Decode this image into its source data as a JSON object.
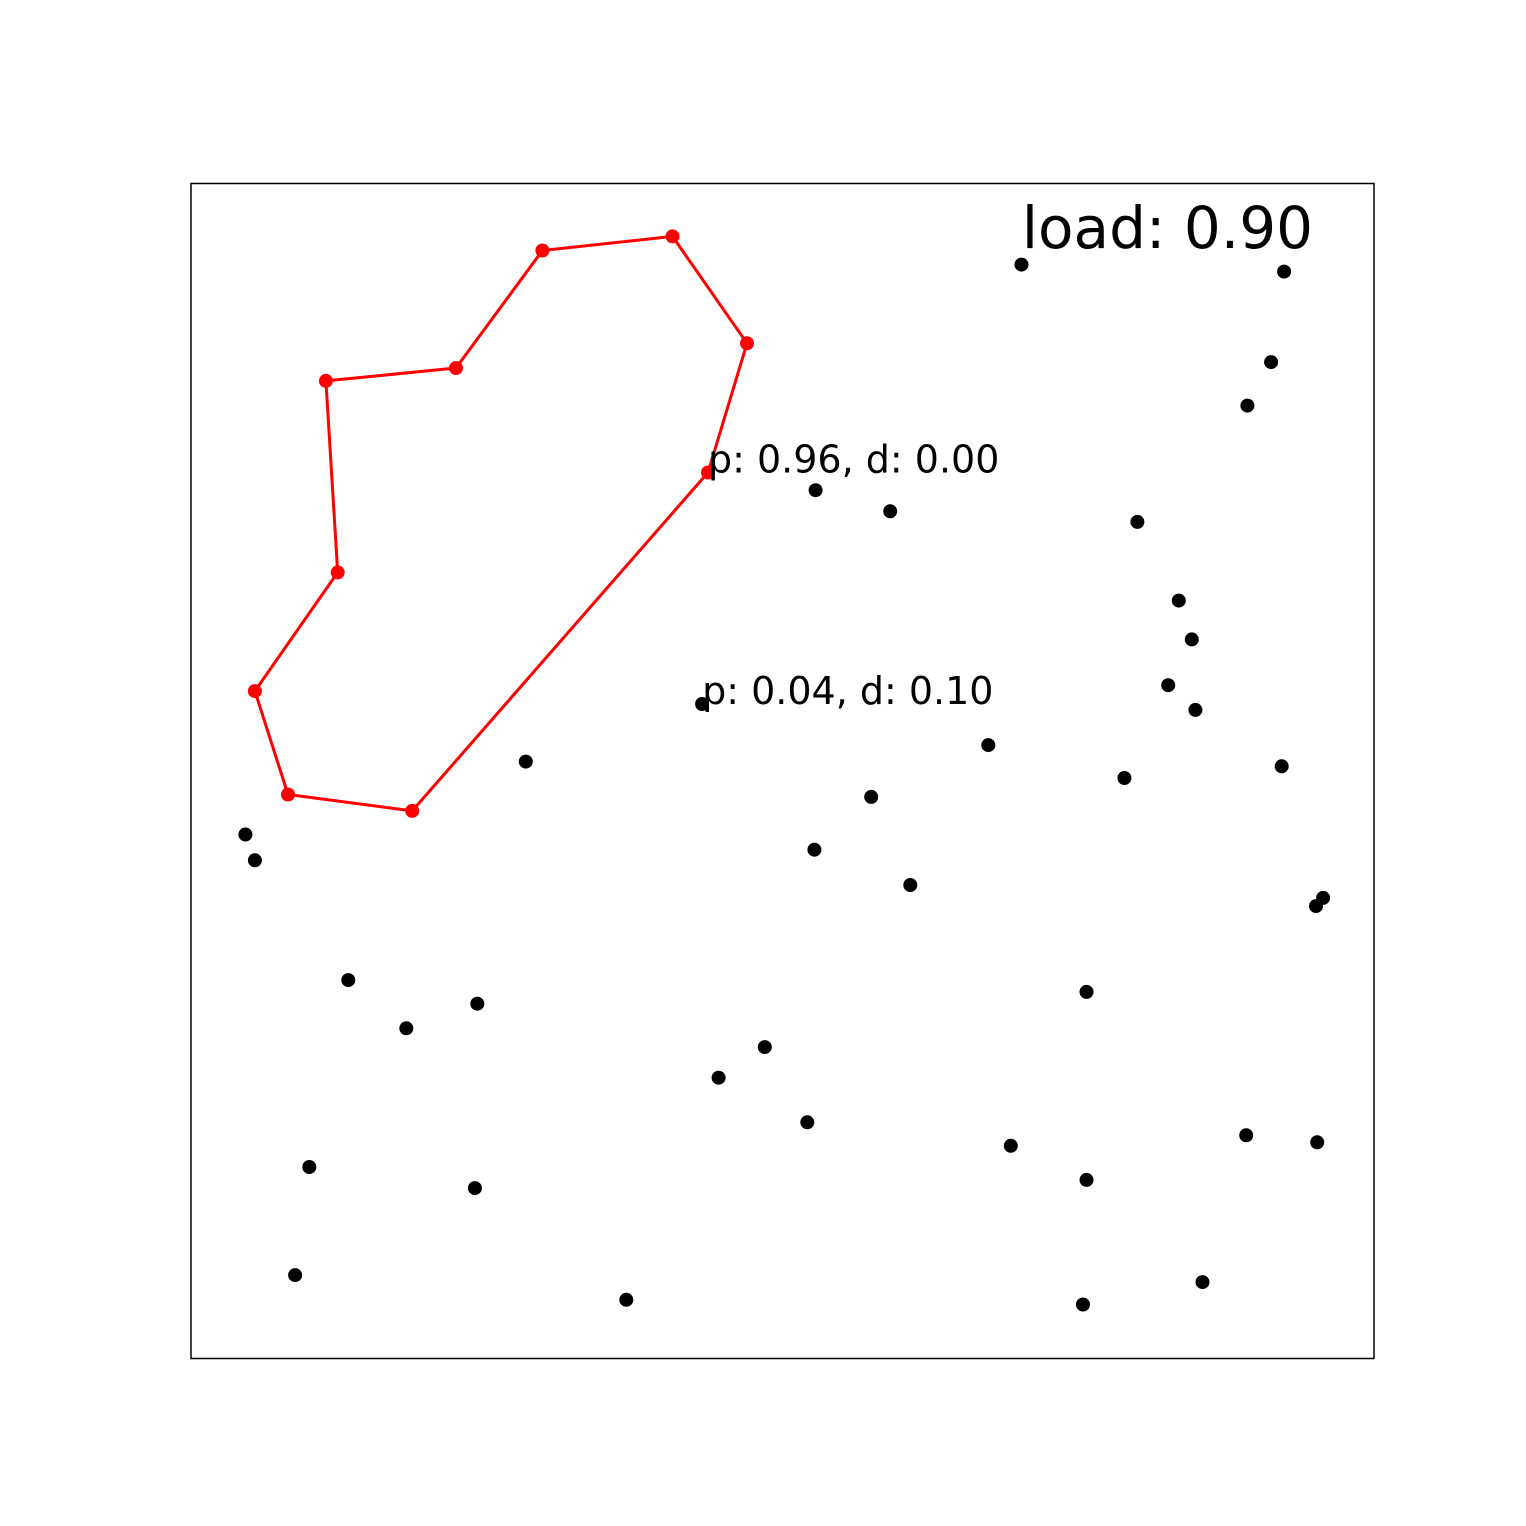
{
  "chart_data": {
    "type": "scatter",
    "title": "",
    "xlabel": "",
    "ylabel": "",
    "xlim": [
      0,
      1
    ],
    "ylim": [
      0,
      1
    ],
    "grid": false,
    "ticks": false,
    "colors": {
      "points": "#000000",
      "route": "#ff0000",
      "frame": "#000000"
    },
    "annotations": [
      {
        "name": "load-label",
        "text": "load: 0.90"
      },
      {
        "name": "annotation-p096",
        "text": "p: 0.96, d: 0.00",
        "x": 0.437,
        "y": 0.754
      },
      {
        "name": "annotation-p004",
        "text": "p: 0.04, d: 0.10",
        "x": 0.432,
        "y": 0.557
      }
    ],
    "route": {
      "closed": true,
      "points": [
        [
          0.437,
          0.754
        ],
        [
          0.47,
          0.864
        ],
        [
          0.407,
          0.955
        ],
        [
          0.297,
          0.943
        ],
        [
          0.224,
          0.843
        ],
        [
          0.114,
          0.832
        ],
        [
          0.124,
          0.669
        ],
        [
          0.054,
          0.568
        ],
        [
          0.082,
          0.48
        ],
        [
          0.187,
          0.466
        ]
      ]
    },
    "series": [
      {
        "points": [
          [
            0.702,
            0.931
          ],
          [
            0.924,
            0.925
          ],
          [
            0.913,
            0.848
          ],
          [
            0.893,
            0.811
          ],
          [
            0.528,
            0.739
          ],
          [
            0.591,
            0.721
          ],
          [
            0.8,
            0.712
          ],
          [
            0.835,
            0.645
          ],
          [
            0.846,
            0.612
          ],
          [
            0.826,
            0.573
          ],
          [
            0.849,
            0.552
          ],
          [
            0.432,
            0.557
          ],
          [
            0.283,
            0.508
          ],
          [
            0.674,
            0.522
          ],
          [
            0.789,
            0.494
          ],
          [
            0.922,
            0.504
          ],
          [
            0.575,
            0.478
          ],
          [
            0.527,
            0.433
          ],
          [
            0.608,
            0.403
          ],
          [
            0.046,
            0.446
          ],
          [
            0.054,
            0.424
          ],
          [
            0.957,
            0.392
          ],
          [
            0.951,
            0.385
          ],
          [
            0.133,
            0.322
          ],
          [
            0.182,
            0.281
          ],
          [
            0.242,
            0.302
          ],
          [
            0.757,
            0.312
          ],
          [
            0.485,
            0.265
          ],
          [
            0.446,
            0.239
          ],
          [
            0.521,
            0.201
          ],
          [
            0.693,
            0.181
          ],
          [
            0.757,
            0.152
          ],
          [
            0.892,
            0.19
          ],
          [
            0.952,
            0.184
          ],
          [
            0.1,
            0.163
          ],
          [
            0.24,
            0.145
          ],
          [
            0.088,
            0.071
          ],
          [
            0.368,
            0.05
          ],
          [
            0.754,
            0.046
          ],
          [
            0.855,
            0.065
          ]
        ]
      }
    ]
  }
}
